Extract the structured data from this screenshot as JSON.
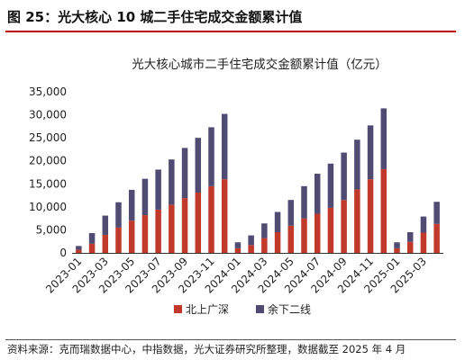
{
  "figure": {
    "title": "图 25：光大核心 10 城二手住宅成交金额累计值",
    "source": "资料来源：克而瑞数据中心，中指数据，光大证券研究所整理，数据截至 2025 年 4 月"
  },
  "colors": {
    "series_1": "#c0392b",
    "series_2": "#4f4b73",
    "rule": "#c00000"
  },
  "chart_data": {
    "type": "bar",
    "stacked": true,
    "title": "光大核心城市二手住宅成交金额累计值（亿元）",
    "xlabel": "",
    "ylabel": "",
    "ylim": [
      0,
      35000
    ],
    "yticks": [
      0,
      5000,
      10000,
      15000,
      20000,
      25000,
      30000,
      35000
    ],
    "ytick_labels": [
      "0",
      "5,000",
      "10,000",
      "15,000",
      "20,000",
      "25,000",
      "30,000",
      "35,000"
    ],
    "grid": false,
    "legend_position": "bottom",
    "categories": [
      "2023-01",
      "2023-02",
      "2023-03",
      "2023-04",
      "2023-05",
      "2023-06",
      "2023-07",
      "2023-08",
      "2023-09",
      "2023-10",
      "2023-11",
      "2023-12",
      "2024-01",
      "2024-02",
      "2024-03",
      "2024-04",
      "2024-05",
      "2024-06",
      "2024-07",
      "2024-08",
      "2024-09",
      "2024-10",
      "2024-11",
      "2024-12",
      "2025-01",
      "2025-02",
      "2025-03",
      "2025-04"
    ],
    "tick_labels": [
      "2023-01",
      "",
      "2023-03",
      "",
      "2023-05",
      "",
      "2023-07",
      "",
      "2023-09",
      "",
      "2023-11",
      "",
      "2024-01",
      "",
      "2024-03",
      "",
      "2024-05",
      "",
      "2024-07",
      "",
      "2024-09",
      "",
      "2024-11",
      "",
      "2025-01",
      "",
      "2025-03",
      ""
    ],
    "series": [
      {
        "name": "北上广深",
        "values": [
          700,
          2000,
          3900,
          5500,
          7000,
          8200,
          9400,
          10500,
          11900,
          13100,
          14500,
          16000,
          1000,
          1700,
          3200,
          4500,
          5900,
          7500,
          8500,
          9800,
          11500,
          13800,
          16000,
          18200,
          1000,
          2400,
          4400,
          6300
        ]
      },
      {
        "name": "余下二线",
        "values": [
          800,
          2300,
          4200,
          5500,
          6700,
          7900,
          8700,
          9800,
          10900,
          11900,
          12800,
          14200,
          1300,
          2100,
          3200,
          4400,
          5600,
          7000,
          8700,
          9600,
          10300,
          10800,
          11700,
          13200,
          1300,
          2100,
          3500,
          4800
        ]
      }
    ]
  }
}
